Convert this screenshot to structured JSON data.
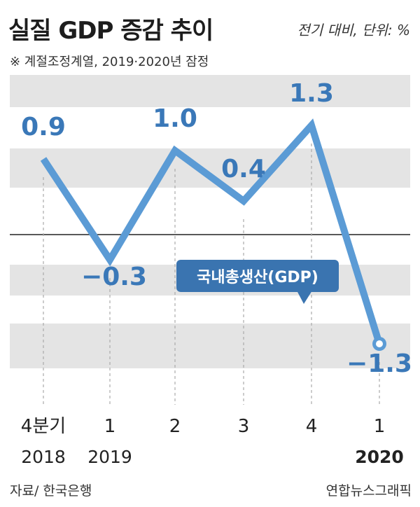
{
  "header": {
    "title": "실질 GDP 증감 추이",
    "unit": "전기 대비, 단위: %",
    "note": "※ 계절조정계열, 2019·2020년 잠정"
  },
  "footer": {
    "source": "자료/ 한국은행",
    "credit": "연합뉴스그래픽"
  },
  "chart_data": {
    "type": "line",
    "series": [
      {
        "name": "국내총생산(GDP)",
        "values": [
          0.9,
          -0.3,
          1.0,
          0.4,
          1.3,
          -1.3
        ]
      }
    ],
    "categories": [
      {
        "quarter": "4분기",
        "year": "2018"
      },
      {
        "quarter": "1",
        "year": "2019"
      },
      {
        "quarter": "2",
        "year": ""
      },
      {
        "quarter": "3",
        "year": ""
      },
      {
        "quarter": "4",
        "year": ""
      },
      {
        "quarter": "1",
        "year": "2020"
      }
    ],
    "value_labels": [
      "0.9",
      "−0.3",
      "1.0",
      "0.4",
      "1.3",
      "−1.3"
    ],
    "zero_line": true,
    "colors": {
      "line": "#5b9bd5",
      "label": "#3a78b8",
      "badge": "#3a74b0",
      "band": "#e4e4e4"
    }
  }
}
